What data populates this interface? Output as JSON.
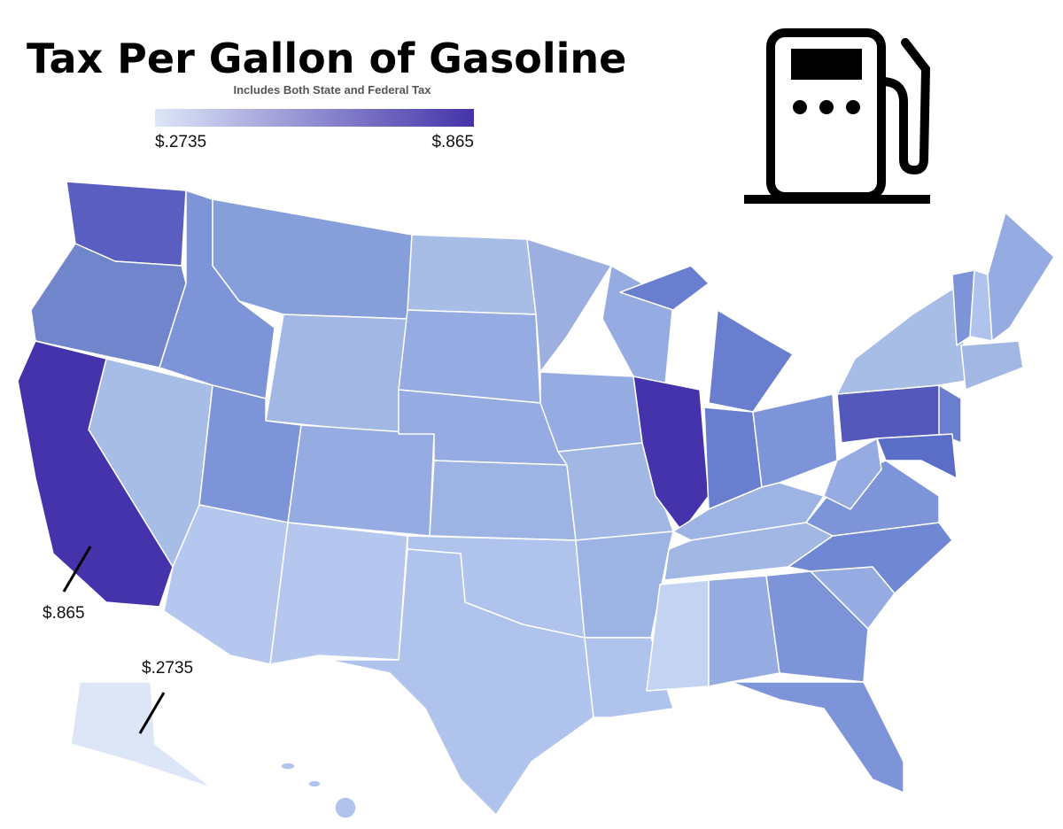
{
  "title": "Tax Per Gallon of Gasoline",
  "subtitle": "Includes Both State and Federal Tax",
  "legend": {
    "min": {
      "value": 0.2735,
      "label": "$.2735"
    },
    "max": {
      "value": 0.865,
      "label": "$.865"
    },
    "colors": [
      "#dde6f7",
      "#4433aa"
    ]
  },
  "callouts": [
    {
      "value": 0.865,
      "label": "$.865"
    },
    {
      "value": 0.2735,
      "label": "$.2735"
    }
  ]
}
